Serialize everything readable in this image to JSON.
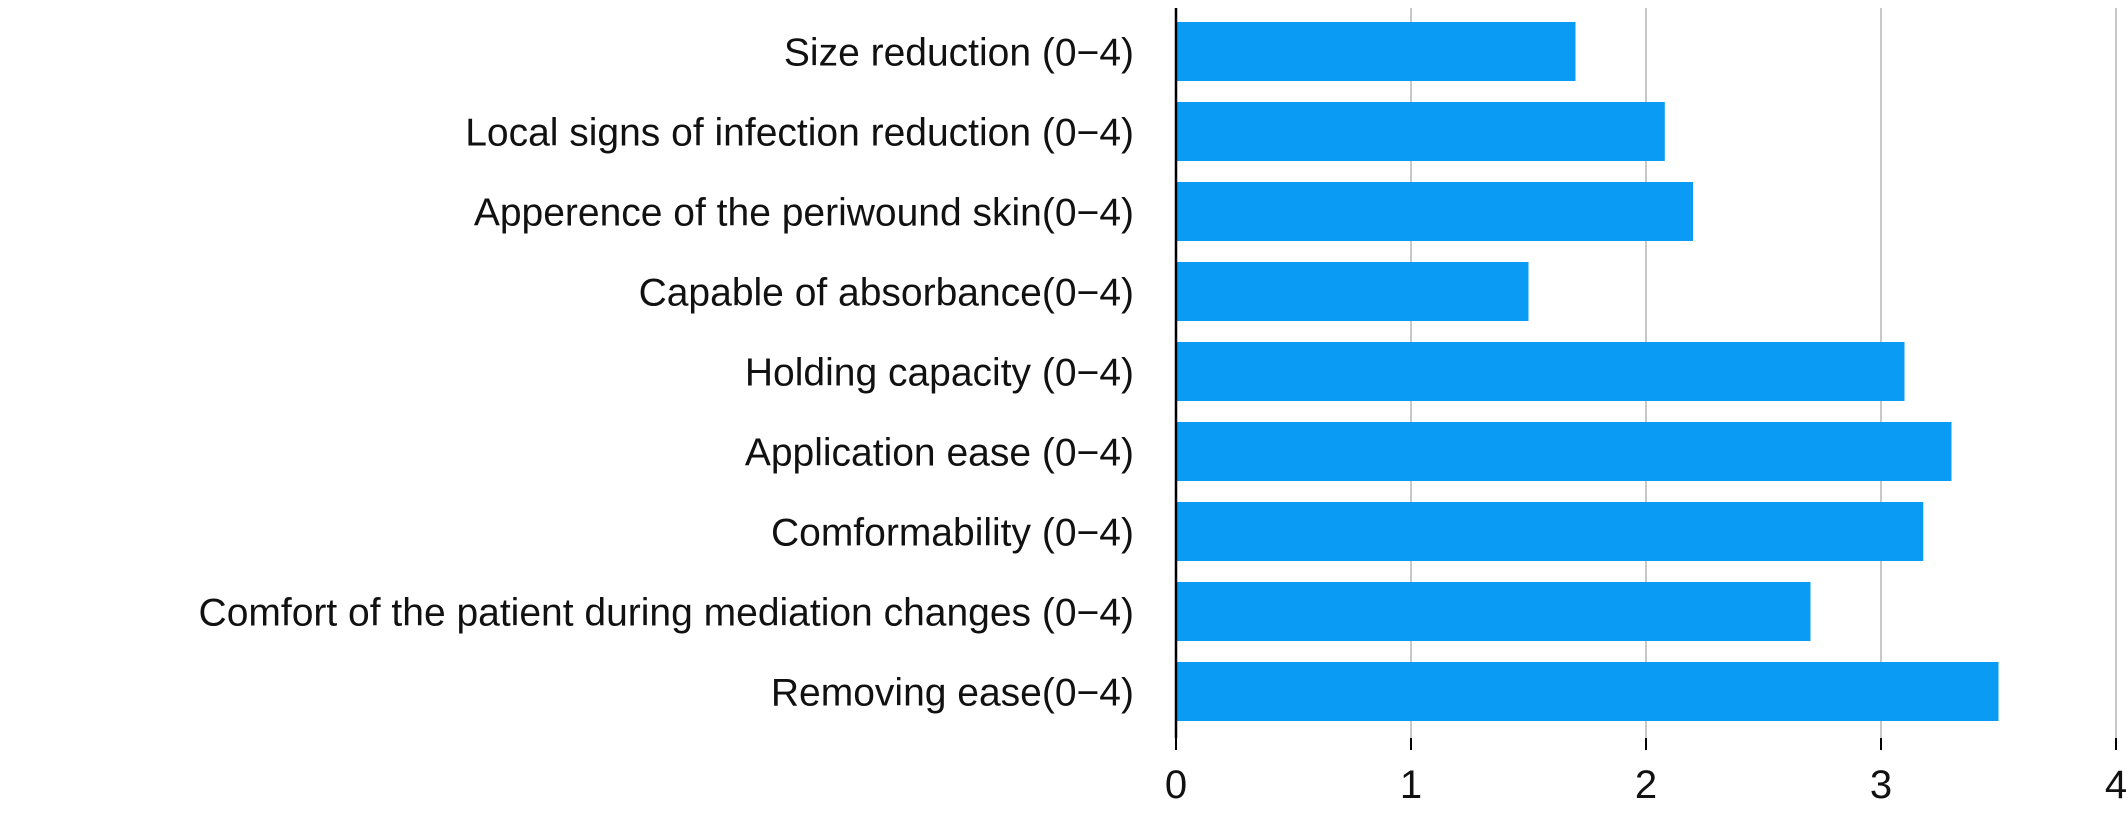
{
  "chart_data": {
    "type": "bar",
    "orientation": "horizontal",
    "title": "",
    "xlabel": "",
    "ylabel": "",
    "categories": [
      "Size reduction (0−4)",
      "Local signs of infection reduction (0−4)",
      "Apperence of the periwound skin(0−4)",
      "Capable of absorbance(0−4)",
      "Holding capacity (0−4)",
      "Application ease (0−4)",
      "Comformability (0−4)",
      "Comfort of the patient during mediation changes (0−4)",
      "Removing ease(0−4)"
    ],
    "values": [
      1.7,
      2.08,
      2.2,
      1.5,
      3.1,
      3.3,
      3.18,
      2.7,
      3.5
    ],
    "xlim": [
      0,
      4
    ],
    "xticks": [
      "0",
      "1",
      "2",
      "3",
      "4"
    ],
    "grid": "vertical",
    "legend": "none",
    "bar_color": "#0a9cf5",
    "grid_color": "#c8c8c8",
    "axis_color": "#000000"
  }
}
